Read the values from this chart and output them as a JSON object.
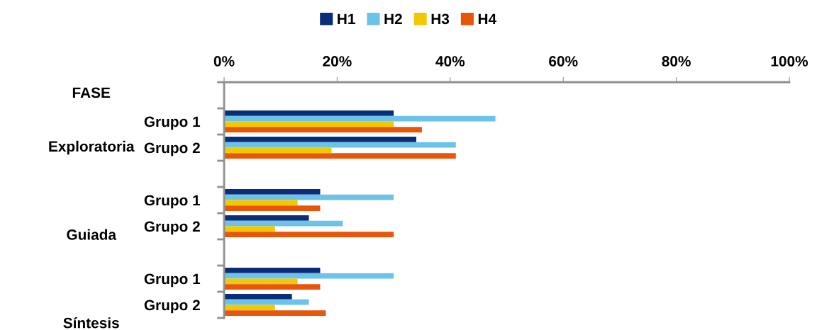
{
  "chart_data": {
    "type": "bar",
    "orientation": "horizontal",
    "ylabel": "FASE",
    "categories": [
      null,
      "Grupo 1",
      "Grupo 2",
      null,
      "Grupo 1",
      "Grupo 2",
      null,
      "Grupo 1",
      "Grupo 2"
    ],
    "annotations": [
      "Exploratoria",
      "Guiada",
      "Síntesis"
    ],
    "series": [
      {
        "name": "H1",
        "color": "#0a2d78",
        "values": [
          null,
          30,
          34,
          null,
          17,
          15,
          null,
          17,
          12
        ]
      },
      {
        "name": "H2",
        "color": "#6cc3e8",
        "values": [
          null,
          48,
          41,
          null,
          30,
          21,
          null,
          30,
          15
        ]
      },
      {
        "name": "H3",
        "color": "#f2c800",
        "values": [
          null,
          30,
          19,
          null,
          13,
          9,
          null,
          13,
          9
        ]
      },
      {
        "name": "H4",
        "color": "#e8560a",
        "values": [
          null,
          35,
          41,
          null,
          17,
          30,
          null,
          17,
          18
        ]
      }
    ],
    "xlim": [
      0,
      100
    ],
    "xticks": [
      {
        "value": 0,
        "label": "0%"
      },
      {
        "value": 20,
        "label": "20%"
      },
      {
        "value": 40,
        "label": "40%"
      },
      {
        "value": 60,
        "label": "60%"
      },
      {
        "value": 80,
        "label": "80%"
      },
      {
        "value": 100,
        "label": "100%"
      }
    ],
    "grid": false,
    "legend": "top"
  }
}
